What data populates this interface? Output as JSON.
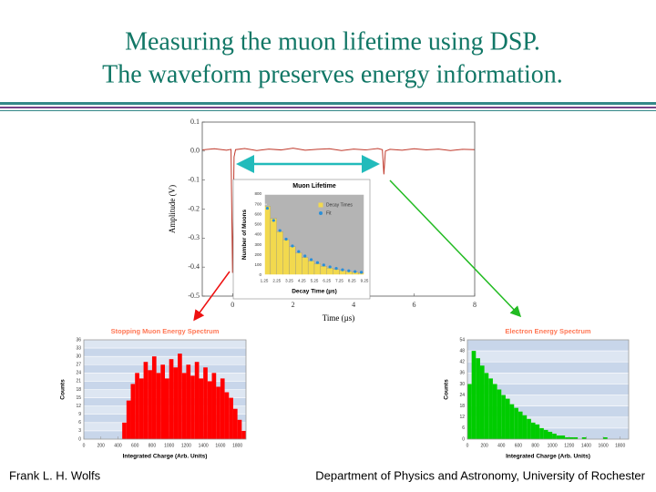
{
  "title_lines": [
    "Measuring the muon lifetime using DSP.",
    "The waveform preserves energy information."
  ],
  "footer": {
    "left": "Frank L. H. Wolfs",
    "right": "Department of Physics and Astronomy, University of Rochester"
  },
  "chart_data": [
    {
      "type": "line",
      "xlabel": "Time (µs)",
      "ylabel": "Amplitude (V)",
      "x": [
        -1,
        -0.6,
        -0.2,
        -0.05,
        0,
        0.05,
        0.1,
        0.4,
        0.8,
        1.2,
        1.6,
        2,
        2.4,
        2.8,
        3.2,
        3.6,
        4,
        4.4,
        4.8,
        4.95,
        5,
        5.05,
        5.2,
        5.6,
        6,
        6.4,
        6.8,
        7.2,
        7.6,
        8
      ],
      "values": [
        0.004,
        0.008,
        0.003,
        0.006,
        -0.42,
        -0.02,
        0.005,
        0.009,
        0.002,
        0.007,
        0.004,
        0.01,
        0.003,
        0.006,
        0.008,
        0.002,
        0.007,
        0.004,
        0.009,
        0.005,
        -0.08,
        0.0,
        0.006,
        0.003,
        0.008,
        0.004,
        0.007,
        0.002,
        0.006,
        0.005
      ],
      "color": "#c0392b",
      "xlim": [
        -1,
        8
      ],
      "xticks": [
        0,
        2,
        4,
        6,
        8
      ],
      "ylim": [
        -0.5,
        0.1
      ],
      "yticks": [
        0.1,
        {
          "value": 0,
          "label": "0.0"
        },
        -0.1,
        -0.2,
        -0.3,
        -0.4,
        -0.5
      ]
    },
    {
      "type": "histogram",
      "title": "Muon Lifetime",
      "xlabel": "Decay Time (µs)",
      "ylabel": "Number of Muons",
      "bins": [
        1.25,
        1.75,
        2.25,
        2.75,
        3.25,
        3.75,
        4.25,
        4.75,
        5.25,
        5.75,
        6.25,
        6.75,
        7.25,
        7.75,
        8.25,
        8.75,
        9.25
      ],
      "series": [
        {
          "name": "Decay Times",
          "color": "#f2d94e",
          "values": [
            680,
            560,
            430,
            350,
            280,
            220,
            175,
            140,
            112,
            88,
            70,
            56,
            45,
            36,
            28,
            22
          ]
        },
        {
          "name": "Fit",
          "color": "#2a8fd8",
          "type": "scatter",
          "x": [
            1.5,
            2,
            2.5,
            3,
            3.5,
            4,
            4.5,
            5,
            5.5,
            6,
            6.5,
            7,
            7.5,
            8,
            8.5,
            9
          ],
          "values": [
            660,
            540,
            440,
            355,
            288,
            233,
            189,
            153,
            124,
            100,
            81,
            66,
            53,
            43,
            35,
            28
          ]
        }
      ],
      "xlim": [
        1.25,
        9.25
      ],
      "xticks": [
        1.25,
        2.25,
        3.25,
        4.25,
        5.25,
        6.25,
        7.25,
        8.25,
        9.25
      ],
      "ylim": [
        0,
        800
      ],
      "yticks": [
        0,
        100,
        200,
        300,
        400,
        500,
        600,
        700,
        800
      ],
      "legend": "upper right"
    },
    {
      "type": "histogram",
      "title": "Stopping Muon Energy Spectrum",
      "xlabel": "Integrated Charge (Arb. Units)",
      "ylabel": "Counts",
      "bins": [
        0,
        50,
        100,
        150,
        200,
        250,
        300,
        350,
        400,
        450,
        500,
        550,
        600,
        650,
        700,
        750,
        800,
        850,
        900,
        950,
        1000,
        1050,
        1100,
        1150,
        1200,
        1250,
        1300,
        1350,
        1400,
        1450,
        1500,
        1550,
        1600,
        1650,
        1700,
        1750,
        1800,
        1850,
        1900
      ],
      "series": [
        {
          "color": "#ff0000",
          "values": [
            0,
            0,
            0,
            0,
            0,
            0,
            0,
            0,
            0,
            6,
            14,
            20,
            24,
            22,
            28,
            25,
            30,
            24,
            27,
            22,
            29,
            26,
            31,
            24,
            27,
            23,
            28,
            22,
            26,
            21,
            24,
            19,
            22,
            17,
            15,
            11,
            7,
            3
          ]
        }
      ],
      "xlim": [
        0,
        1900
      ],
      "xticks": [
        0,
        200,
        400,
        600,
        800,
        1000,
        1200,
        1400,
        1600,
        1800
      ],
      "ylim": [
        0,
        36
      ],
      "yticks": [
        0,
        3,
        6,
        9,
        12,
        15,
        18,
        21,
        24,
        27,
        30,
        33,
        36
      ],
      "grid": true
    },
    {
      "type": "histogram",
      "title": "Electron Energy Spectrum",
      "xlabel": "Integrated Charge (Arb. Units)",
      "ylabel": "Counts",
      "bins": [
        0,
        50,
        100,
        150,
        200,
        250,
        300,
        350,
        400,
        450,
        500,
        550,
        600,
        650,
        700,
        750,
        800,
        850,
        900,
        950,
        1000,
        1050,
        1100,
        1150,
        1200,
        1250,
        1300,
        1350,
        1400,
        1450,
        1500,
        1550,
        1600,
        1650,
        1700,
        1750,
        1800,
        1850,
        1900
      ],
      "series": [
        {
          "color": "#00cc00",
          "values": [
            30,
            48,
            44,
            40,
            36,
            33,
            30,
            27,
            24,
            22,
            19,
            17,
            15,
            13,
            11,
            9,
            8,
            6,
            5,
            4,
            3,
            2,
            2,
            1,
            1,
            1,
            0,
            1,
            0,
            0,
            0,
            0,
            1,
            0,
            0,
            0,
            0,
            0
          ]
        }
      ],
      "xlim": [
        0,
        1900
      ],
      "xticks": [
        0,
        200,
        400,
        600,
        800,
        1000,
        1200,
        1400,
        1600,
        1800
      ],
      "ylim": [
        0,
        54
      ],
      "yticks": [
        0,
        6,
        12,
        18,
        24,
        30,
        36,
        42,
        48,
        54
      ],
      "grid": true
    }
  ]
}
